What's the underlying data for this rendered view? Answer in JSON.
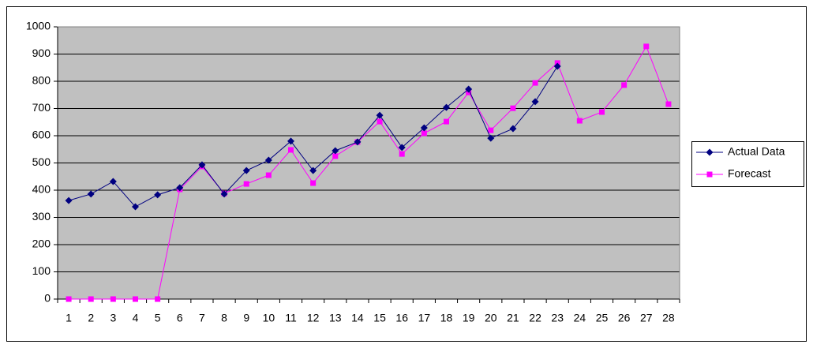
{
  "chart_data": {
    "type": "line",
    "categories": [
      1,
      2,
      3,
      4,
      5,
      6,
      7,
      8,
      9,
      10,
      11,
      12,
      13,
      14,
      15,
      16,
      17,
      18,
      19,
      20,
      21,
      22,
      23,
      24,
      25,
      26,
      27,
      28
    ],
    "series": [
      {
        "name": "Actual Data",
        "color": "#000080",
        "marker": "diamond",
        "values": [
          362,
          386,
          432,
          339,
          383,
          409,
          493,
          386,
          472,
          510,
          580,
          472,
          545,
          577,
          675,
          557,
          629,
          704,
          771,
          591,
          626,
          725,
          855,
          null,
          null,
          null,
          null,
          null
        ]
      },
      {
        "name": "Forecast",
        "color": "#ff00ff",
        "marker": "square",
        "values": [
          0,
          0,
          0,
          0,
          0,
          403,
          487,
          388,
          423,
          455,
          548,
          426,
          525,
          577,
          652,
          533,
          609,
          652,
          759,
          620,
          701,
          794,
          867,
          655,
          687,
          786,
          928,
          716
        ]
      }
    ],
    "ylim": [
      0,
      1000
    ],
    "yticks": [
      0,
      100,
      200,
      300,
      400,
      500,
      600,
      700,
      800,
      900,
      1000
    ],
    "grid": true,
    "plot_background": "#c0c0c0",
    "legend": "right"
  }
}
